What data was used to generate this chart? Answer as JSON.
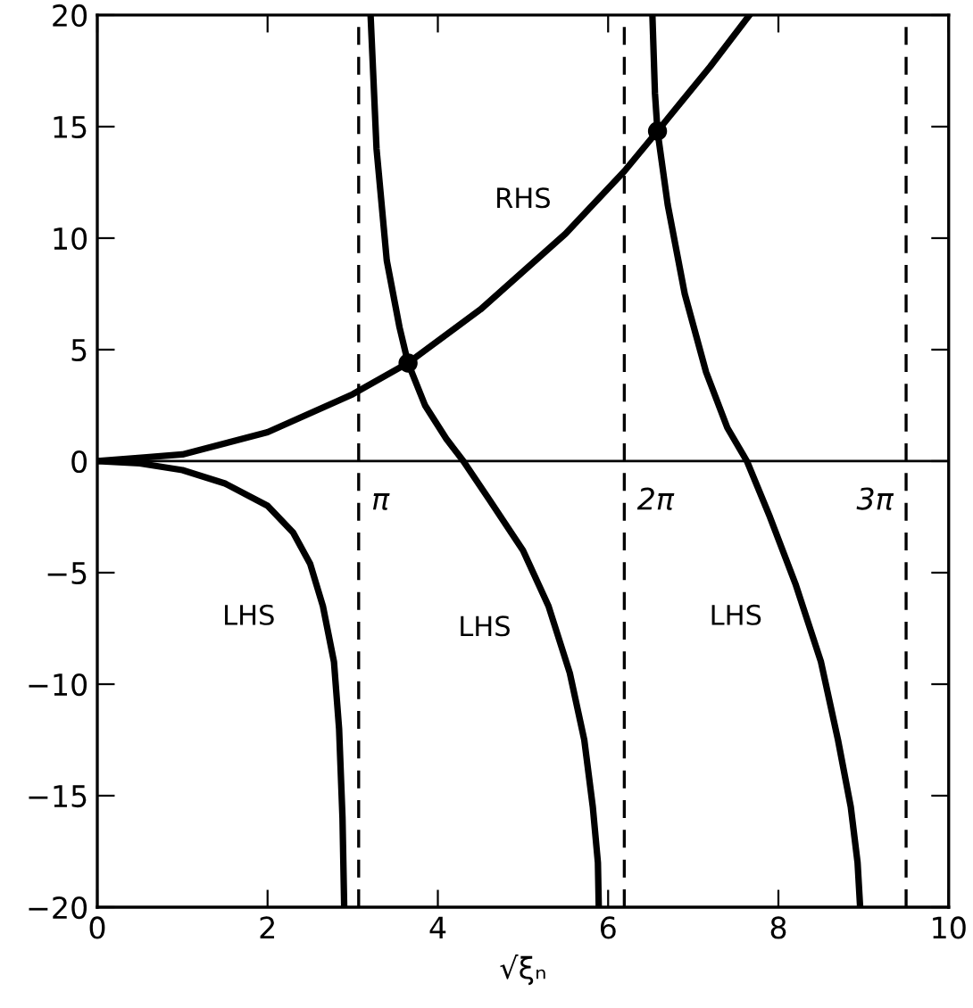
{
  "chart_data": {
    "type": "line",
    "xlabel": "√ξₙ",
    "xlim": [
      0,
      10
    ],
    "xticks": [
      0,
      2,
      4,
      6,
      8,
      10
    ],
    "ylim": [
      -20,
      20
    ],
    "yticks": [
      -20,
      -15,
      -10,
      -5,
      0,
      5,
      10,
      15,
      20
    ],
    "grid": false,
    "legend": false,
    "marker": "none",
    "line_style": "solid",
    "series": [
      {
        "name": "LHS",
        "color": "#000000",
        "x": [
          0,
          0.5,
          1,
          1.5,
          2,
          2.3,
          2.5,
          2.65,
          2.78,
          2.84,
          2.88,
          2.9
        ],
        "values": [
          0,
          -0.1,
          -0.4,
          -1.0,
          -2.0,
          -3.2,
          -4.6,
          -6.5,
          -9,
          -12,
          -16,
          -20
        ]
      },
      {
        "name": "LHS",
        "color": "#000000",
        "x": [
          3.21,
          3.28,
          3.4,
          3.55,
          3.65,
          3.85,
          4.1,
          4.3,
          4.6,
          5,
          5.3,
          5.55,
          5.72,
          5.82,
          5.88,
          5.89
        ],
        "values": [
          20,
          14,
          9,
          6,
          4.4,
          2.5,
          1,
          0,
          -1.7,
          -4,
          -6.5,
          -9.5,
          -12.5,
          -15.5,
          -18,
          -20
        ]
      },
      {
        "name": "LHS",
        "color": "#000000",
        "x": [
          6.52,
          6.55,
          6.58,
          6.7,
          6.9,
          7.15,
          7.4,
          7.63,
          7.9,
          8.2,
          8.5,
          8.7,
          8.85,
          8.93,
          8.96
        ],
        "values": [
          20,
          16.5,
          14.8,
          11.5,
          7.5,
          4,
          1.5,
          0,
          -2.5,
          -5.5,
          -9,
          -12.5,
          -15.5,
          -18,
          -20
        ]
      },
      {
        "name": "RHS",
        "color": "#000000",
        "x": [
          0,
          1,
          2,
          3,
          3.65,
          4.5,
          5.5,
          6.19,
          6.58,
          7.2,
          7.66
        ],
        "values": [
          0,
          0.3,
          1.3,
          3.0,
          4.4,
          6.8,
          10.2,
          13,
          14.8,
          17.7,
          20
        ]
      },
      {
        "type": "scatter",
        "color": "#000000",
        "marker": "circle",
        "x": [
          3.65,
          6.58
        ],
        "values": [
          4.4,
          14.8
        ]
      }
    ],
    "ref_lines": [
      {
        "axis": "y",
        "value": 0,
        "color": "#000000",
        "line_style": "solid"
      },
      {
        "axis": "x",
        "value": 3.07,
        "label": "π",
        "color": "#000000",
        "line_style": "dashed"
      },
      {
        "axis": "x",
        "value": 6.19,
        "label": "2π",
        "color": "#000000",
        "line_style": "dashed"
      },
      {
        "axis": "x",
        "value": 9.5,
        "label": "3π",
        "color": "#000000",
        "line_style": "dashed"
      }
    ]
  }
}
